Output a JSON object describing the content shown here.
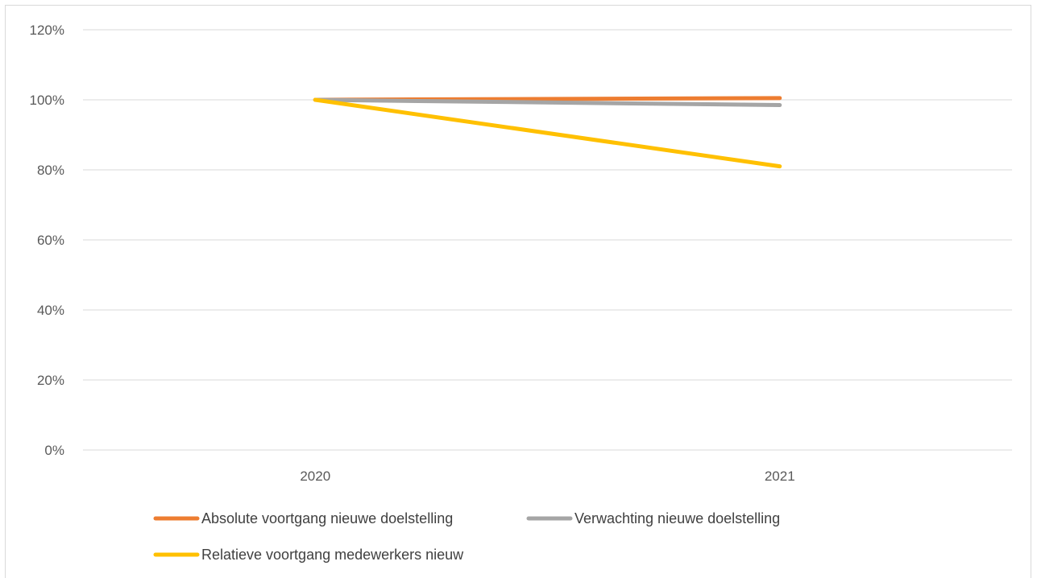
{
  "chart_data": {
    "type": "line",
    "categories": [
      "2020",
      "2021"
    ],
    "y_ticks": [
      "0%",
      "20%",
      "40%",
      "60%",
      "80%",
      "100%",
      "120%"
    ],
    "ylim": [
      0,
      1.2
    ],
    "grid": true,
    "legend_position": "bottom",
    "series": [
      {
        "name": "Absolute voortgang nieuwe doelstelling",
        "color": "#ED7D31",
        "values": [
          1.0,
          1.005
        ]
      },
      {
        "name": "Verwachting nieuwe doelstelling",
        "color": "#A5A5A5",
        "values": [
          1.0,
          0.985
        ]
      },
      {
        "name": "Relatieve voortgang medewerkers nieuw",
        "color": "#FFC000",
        "values": [
          1.0,
          0.81
        ]
      }
    ]
  }
}
